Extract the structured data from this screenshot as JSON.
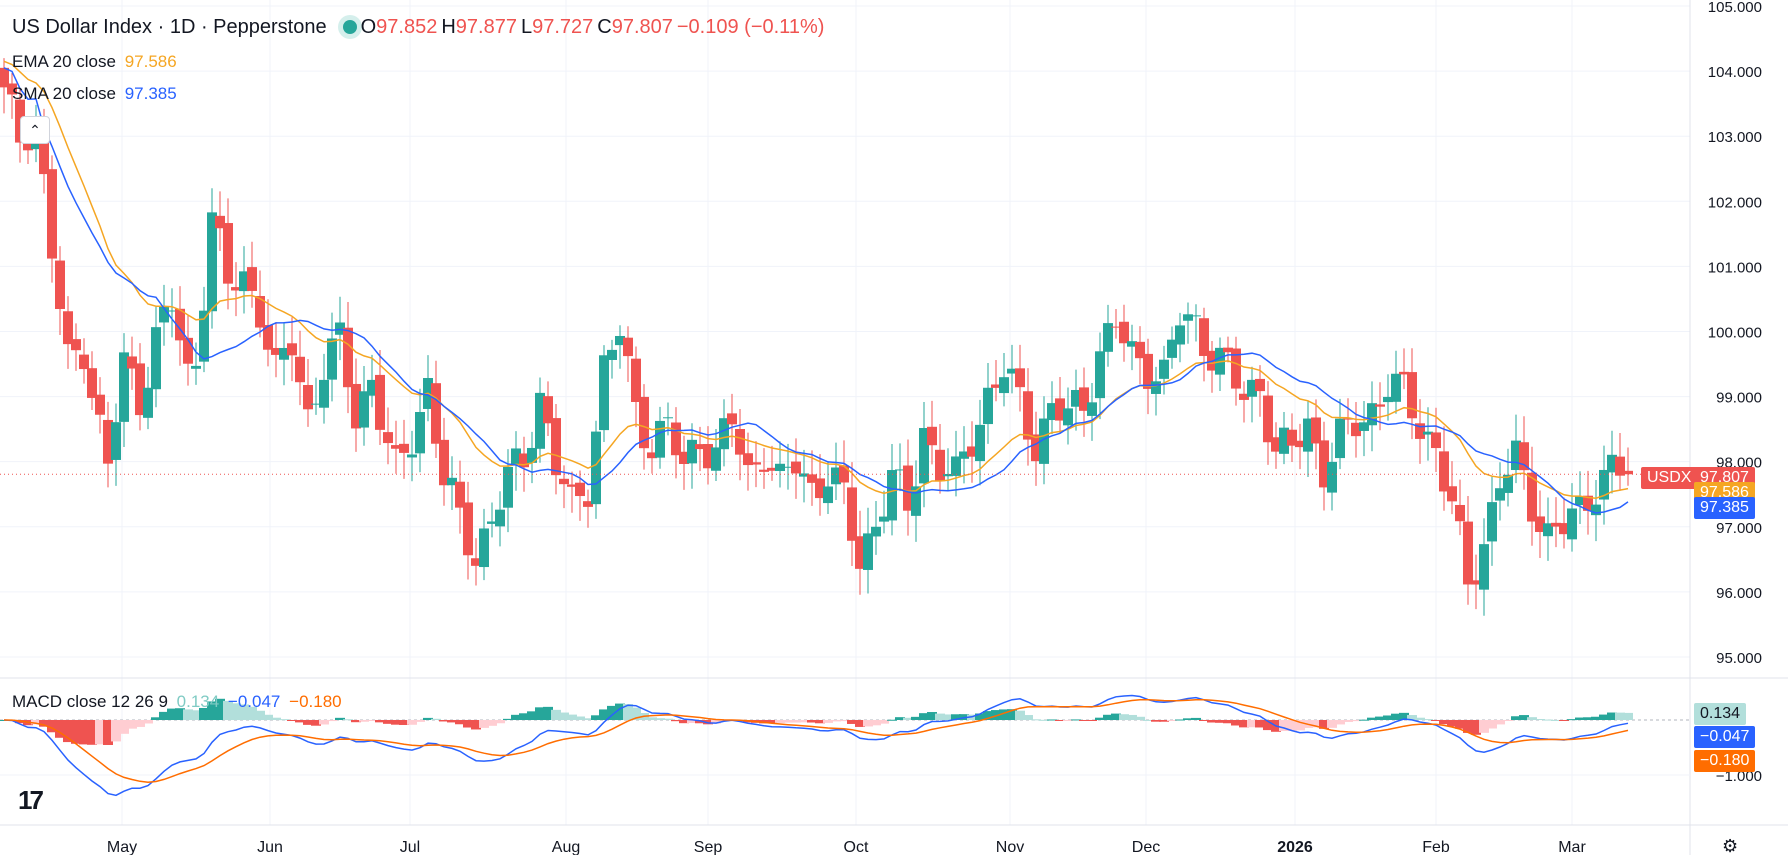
{
  "header": {
    "title": "US Dollar Index · 1D · Pepperstone",
    "open_label": "O",
    "open": "97.852",
    "high_label": "H",
    "high": "97.877",
    "low_label": "L",
    "low": "97.727",
    "close_label": "C",
    "close": "97.807",
    "change": "−0.109 (−0.11%)"
  },
  "indicators": {
    "ema_label": "EMA 20 close",
    "ema_value": "97.586",
    "sma_label": "SMA 20 close",
    "sma_value": "97.385",
    "macd_label": "MACD close 12 26 9",
    "macd_hist": "0.134",
    "macd_line": "−0.047",
    "macd_signal": "−0.180"
  },
  "tags": {
    "symbol": "USDX",
    "price": "97.807",
    "ema": "97.586",
    "sma": "97.385",
    "macd_hist": "0.134",
    "macd_line": "−0.047",
    "macd_signal": "−0.180"
  },
  "colors": {
    "up": "#26a69a",
    "down": "#ef5350",
    "ema": "#f5a623",
    "sma": "#2962ff",
    "macd": "#2962ff",
    "signal": "#ff6d00",
    "hist_up": "#26a69a",
    "hist_up_light": "#b2dfdb",
    "hist_down": "#ef5350",
    "hist_down_light": "#ffcdd2"
  },
  "icons": {
    "collapse": "chevron-up-icon",
    "logo": "tradingview-logo",
    "settings": "gear-icon"
  },
  "chart_data": {
    "type": "candlestick",
    "price_axis": {
      "min": 94.8,
      "max": 105.0,
      "ticks": [
        "105.000",
        "104.000",
        "103.000",
        "102.000",
        "101.000",
        "100.000",
        "99.000",
        "98.000",
        "97.000",
        "96.000",
        "95.000"
      ]
    },
    "macd_axis": {
      "ticks": [
        "−1.000"
      ]
    },
    "x_labels": [
      "May",
      "Jun",
      "Jul",
      "Aug",
      "Sep",
      "Oct",
      "Nov",
      "Dec",
      "2026",
      "Feb",
      "Mar"
    ],
    "last_price": 97.807,
    "ohlc_keypoints": [
      [
        103.6,
        0
      ],
      [
        103.0,
        2
      ],
      [
        103.3,
        4
      ],
      [
        101.2,
        6
      ],
      [
        99.5,
        8
      ],
      [
        99.8,
        10
      ],
      [
        98.5,
        12
      ],
      [
        97.9,
        13
      ],
      [
        99.5,
        15
      ],
      [
        99.0,
        17
      ],
      [
        99.9,
        19
      ],
      [
        100.4,
        21
      ],
      [
        99.3,
        23
      ],
      [
        99.6,
        24
      ],
      [
        101.8,
        26
      ],
      [
        100.7,
        28
      ],
      [
        100.8,
        30
      ],
      [
        100.4,
        32
      ],
      [
        99.3,
        34
      ],
      [
        99.8,
        36
      ],
      [
        98.7,
        38
      ],
      [
        99.5,
        40
      ],
      [
        99.8,
        42
      ],
      [
        98.7,
        44
      ],
      [
        99.3,
        46
      ],
      [
        98.2,
        48
      ],
      [
        97.8,
        49
      ],
      [
        98.4,
        51
      ],
      [
        99.2,
        53
      ],
      [
        97.7,
        55
      ],
      [
        97.1,
        57
      ],
      [
        96.6,
        59
      ],
      [
        97.1,
        61
      ],
      [
        97.7,
        63
      ],
      [
        98.1,
        65
      ],
      [
        99.0,
        67
      ],
      [
        97.9,
        69
      ],
      [
        97.3,
        71
      ],
      [
        97.7,
        73
      ],
      [
        99.4,
        75
      ],
      [
        100.0,
        77
      ],
      [
        98.8,
        79
      ],
      [
        98.3,
        81
      ],
      [
        98.5,
        83
      ],
      [
        97.9,
        85
      ],
      [
        98.4,
        87
      ],
      [
        98.1,
        89
      ],
      [
        98.6,
        91
      ],
      [
        97.8,
        93
      ],
      [
        98.2,
        95
      ],
      [
        97.6,
        97
      ],
      [
        98.0,
        99
      ],
      [
        97.6,
        101
      ],
      [
        97.8,
        103
      ],
      [
        97.4,
        105
      ],
      [
        96.5,
        107
      ],
      [
        97.1,
        109
      ],
      [
        97.7,
        111
      ],
      [
        97.3,
        113
      ],
      [
        98.5,
        115
      ],
      [
        97.9,
        117
      ],
      [
        97.7,
        119
      ],
      [
        98.4,
        121
      ],
      [
        99.0,
        123
      ],
      [
        99.4,
        125
      ],
      [
        98.9,
        127
      ],
      [
        98.3,
        129
      ],
      [
        98.8,
        131
      ],
      [
        98.7,
        133
      ],
      [
        98.9,
        135
      ],
      [
        99.7,
        137
      ],
      [
        100.1,
        139
      ],
      [
        99.6,
        141
      ],
      [
        99.5,
        143
      ],
      [
        99.3,
        145
      ],
      [
        100.2,
        147
      ],
      [
        100.1,
        149
      ],
      [
        99.7,
        151
      ],
      [
        99.4,
        153
      ],
      [
        99.0,
        155
      ],
      [
        99.2,
        157
      ],
      [
        98.1,
        159
      ],
      [
        98.2,
        161
      ],
      [
        98.6,
        163
      ],
      [
        97.9,
        165
      ],
      [
        98.3,
        167
      ],
      [
        98.6,
        169
      ],
      [
        98.8,
        171
      ],
      [
        99.2,
        173
      ],
      [
        99.0,
        175
      ],
      [
        98.6,
        177
      ],
      [
        98.2,
        179
      ],
      [
        97.3,
        181
      ],
      [
        96.1,
        183
      ],
      [
        96.8,
        185
      ],
      [
        97.7,
        187
      ],
      [
        98.0,
        189
      ],
      [
        97.4,
        191
      ],
      [
        96.9,
        193
      ],
      [
        97.0,
        195
      ],
      [
        97.2,
        197
      ],
      [
        97.7,
        199
      ],
      [
        97.9,
        201
      ],
      [
        97.807,
        203
      ]
    ]
  }
}
